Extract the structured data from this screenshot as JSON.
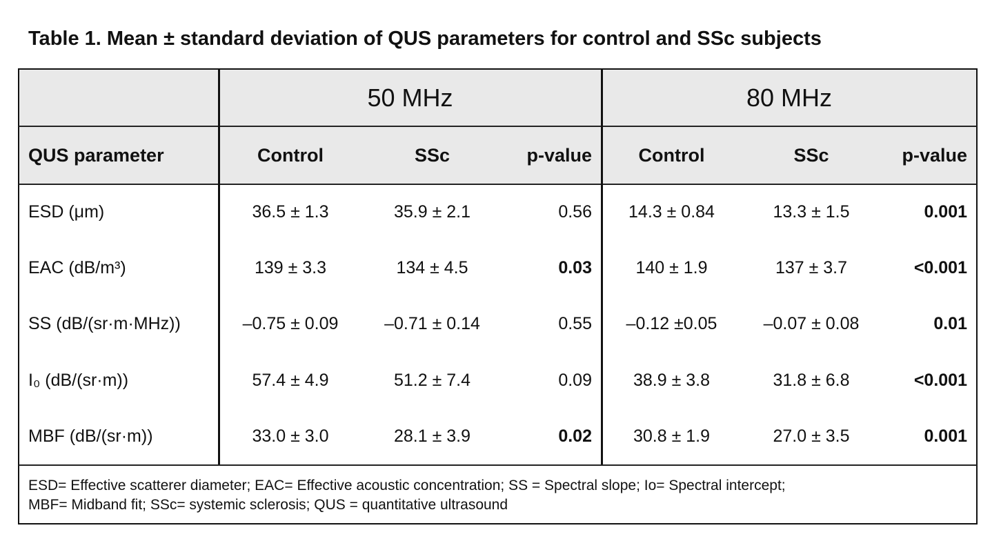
{
  "title": "Table 1. Mean ± standard deviation of QUS parameters for control and SSc subjects",
  "table": {
    "groups": [
      "50 MHz",
      "80 MHz"
    ],
    "columns": [
      "QUS parameter",
      "Control",
      "SSc",
      "p-value",
      "Control",
      "SSc",
      "p-value"
    ],
    "rows": [
      {
        "parameter": "ESD (μm)",
        "cells": [
          "36.5 ± 1.3",
          "35.9 ± 2.1",
          "0.56",
          "14.3 ± 0.84",
          "13.3 ± 1.5",
          "0.001"
        ],
        "bold": [
          false,
          false,
          false,
          false,
          false,
          true
        ]
      },
      {
        "parameter": "EAC (dB/m³)",
        "cells": [
          "139 ± 3.3",
          "134 ± 4.5",
          "0.03",
          "140 ± 1.9",
          "137 ± 3.7",
          "<0.001"
        ],
        "bold": [
          false,
          false,
          true,
          false,
          false,
          true
        ]
      },
      {
        "parameter": "SS (dB/(sr·m·MHz))",
        "cells": [
          "–0.75 ± 0.09",
          "–0.71 ± 0.14",
          "0.55",
          "–0.12 ±0.05",
          "–0.07 ± 0.08",
          "0.01"
        ],
        "bold": [
          false,
          false,
          false,
          false,
          false,
          true
        ]
      },
      {
        "parameter": "I₀ (dB/(sr·m))",
        "cells": [
          "57.4 ± 4.9",
          "51.2 ± 7.4",
          "0.09",
          "38.9 ± 3.8",
          "31.8 ± 6.8",
          "<0.001"
        ],
        "bold": [
          false,
          false,
          false,
          false,
          false,
          true
        ]
      },
      {
        "parameter": "MBF (dB/(sr·m))",
        "cells": [
          "33.0 ± 3.0",
          "28.1 ± 3.9",
          "0.02",
          "30.8 ± 1.9",
          "27.0 ± 3.5",
          "0.001"
        ],
        "bold": [
          false,
          false,
          true,
          false,
          false,
          true
        ]
      }
    ],
    "footnote": [
      "ESD= Effective scatterer diameter; EAC= Effective acoustic concentration; SS = Spectral slope; Io= Spectral intercept;",
      "MBF= Midband fit; SSc= systemic sclerosis; QUS = quantitative ultrasound"
    ]
  }
}
